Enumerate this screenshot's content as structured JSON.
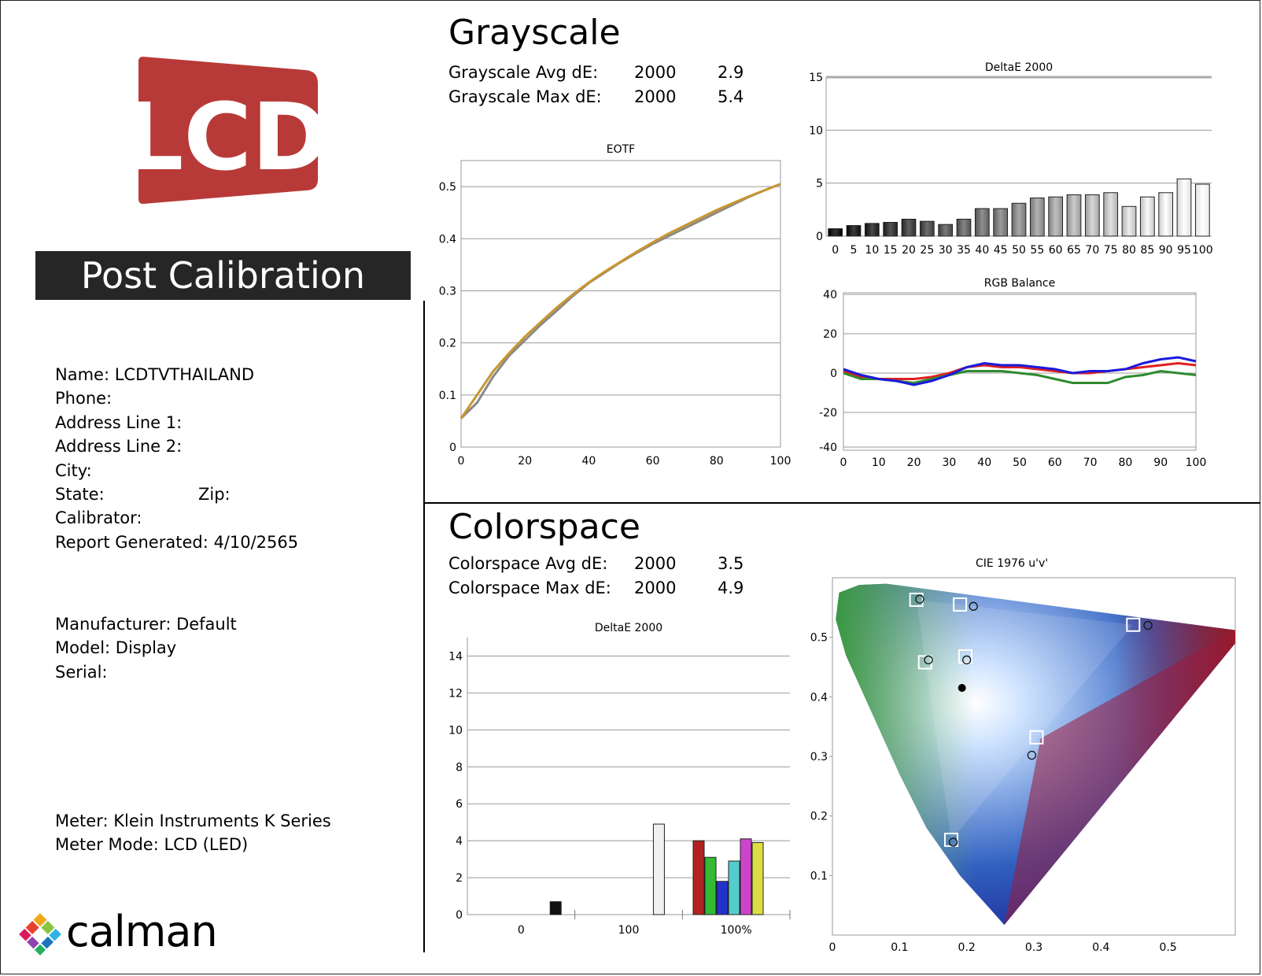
{
  "logo_text": "LCD",
  "banner": "Post Calibration",
  "info": {
    "name": "Name: LCDTVTHAILAND",
    "phone": "Phone:",
    "address1": "Address Line 1:",
    "address2": "Address Line 2:",
    "city": "City:",
    "state": "State:",
    "zip": "Zip:",
    "calibrator": "Calibrator:",
    "report": "Report Generated: 4/10/2565",
    "manufacturer": "Manufacturer: Default",
    "model": "Model: Display",
    "serial": "Serial:",
    "meter": "Meter: Klein Instruments K Series",
    "meter_mode": "Meter Mode: LCD (LED)"
  },
  "brand": "calman",
  "grayscale": {
    "title": "Grayscale",
    "avg_label": "Grayscale Avg dE:",
    "avg_std": "2000",
    "avg_val": "2.9",
    "max_label": "Grayscale Max dE:",
    "max_std": "2000",
    "max_val": "5.4"
  },
  "colorspace": {
    "title": "Colorspace",
    "avg_label": "Colorspace Avg dE:",
    "avg_std": "2000",
    "avg_val": "3.5",
    "max_label": "Colorspace Max dE:",
    "max_std": "2000",
    "max_val": "4.9"
  },
  "chart_data": [
    {
      "type": "line",
      "title": "EOTF",
      "x": [
        0,
        5,
        10,
        15,
        20,
        25,
        30,
        35,
        40,
        45,
        50,
        55,
        60,
        65,
        70,
        75,
        80,
        85,
        90,
        95,
        100
      ],
      "xlim": [
        0,
        100
      ],
      "ylim": [
        0,
        0.55
      ],
      "xticks": [
        "0",
        "20",
        "40",
        "60",
        "80",
        "100"
      ],
      "yticks": [
        "0",
        "0.1",
        "0.2",
        "0.3",
        "0.4",
        "0.5"
      ],
      "series": [
        {
          "color": "#8a8a8a",
          "values": [
            0.055,
            0.085,
            0.135,
            0.175,
            0.205,
            0.235,
            0.262,
            0.29,
            0.315,
            0.335,
            0.355,
            0.373,
            0.39,
            0.405,
            0.42,
            0.435,
            0.45,
            0.465,
            0.48,
            0.493,
            0.505
          ]
        },
        {
          "color": "#c8962f",
          "values": [
            0.055,
            0.1,
            0.145,
            0.18,
            0.212,
            0.24,
            0.268,
            0.293,
            0.316,
            0.337,
            0.356,
            0.375,
            0.393,
            0.41,
            0.425,
            0.44,
            0.455,
            0.468,
            0.481,
            0.493,
            0.505
          ]
        }
      ]
    },
    {
      "type": "bar",
      "title": "DeltaE 2000",
      "categories": [
        "0",
        "5",
        "10",
        "15",
        "20",
        "25",
        "30",
        "35",
        "40",
        "45",
        "50",
        "55",
        "60",
        "65",
        "70",
        "75",
        "80",
        "85",
        "90",
        "95",
        "100"
      ],
      "values": [
        0.7,
        1.0,
        1.2,
        1.3,
        1.6,
        1.4,
        1.1,
        1.6,
        2.6,
        2.6,
        3.1,
        3.6,
        3.7,
        3.9,
        3.9,
        4.1,
        2.8,
        3.7,
        4.1,
        5.4,
        4.9
      ],
      "ylim": [
        0,
        15
      ],
      "yticks": [
        "0",
        "5",
        "10",
        "15"
      ]
    },
    {
      "type": "line",
      "title": "RGB Balance",
      "x": [
        0,
        5,
        10,
        15,
        20,
        25,
        30,
        35,
        40,
        45,
        50,
        55,
        60,
        65,
        70,
        75,
        80,
        85,
        90,
        95,
        100
      ],
      "xlim": [
        0,
        100
      ],
      "ylim": [
        -40,
        40
      ],
      "xticks": [
        "0",
        "10",
        "20",
        "30",
        "40",
        "50",
        "60",
        "70",
        "80",
        "90",
        "100"
      ],
      "yticks": [
        "40",
        "20",
        "0",
        "-20",
        "-40"
      ],
      "series": [
        {
          "color": "#e02020",
          "values": [
            1,
            -2,
            -3,
            -3,
            -3,
            -2,
            0,
            3,
            4,
            3,
            3,
            2,
            1,
            0,
            0,
            1,
            2,
            3,
            4,
            5,
            4
          ]
        },
        {
          "color": "#2e8b2e",
          "values": [
            0,
            -3,
            -3,
            -4,
            -5,
            -3,
            -1,
            1,
            1,
            1,
            0,
            -1,
            -3,
            -5,
            -5,
            -5,
            -2,
            -1,
            1,
            0,
            -1
          ]
        },
        {
          "color": "#1a1adb",
          "values": [
            2,
            -1,
            -3,
            -4,
            -6,
            -4,
            -1,
            3,
            5,
            4,
            4,
            3,
            2,
            0,
            1,
            1,
            2,
            5,
            7,
            8,
            6
          ]
        }
      ]
    },
    {
      "type": "bar",
      "title": "DeltaE 2000",
      "categories": [
        "0",
        "100",
        "100%"
      ],
      "ylim": [
        0,
        15
      ],
      "yticks": [
        "0",
        "2",
        "4",
        "6",
        "8",
        "10",
        "12",
        "14"
      ],
      "bars": [
        {
          "value": 0.7,
          "color": "#111111"
        },
        {
          "value": 4.9,
          "color": "#f0f0f0"
        },
        {
          "value": 4.0,
          "color": "#b32222"
        },
        {
          "value": 3.1,
          "color": "#33bb33"
        },
        {
          "value": 1.8,
          "color": "#2233cc"
        },
        {
          "value": 2.9,
          "color": "#55cccc"
        },
        {
          "value": 4.1,
          "color": "#cc44cc"
        },
        {
          "value": 3.9,
          "color": "#dddd44"
        }
      ]
    },
    {
      "type": "scatter",
      "title": "CIE 1976 u'v'",
      "xlim": [
        0,
        0.6
      ],
      "ylim": [
        0,
        0.6
      ],
      "xticks": [
        "0",
        "0.1",
        "0.2",
        "0.3",
        "0.4",
        "0.5"
      ],
      "yticks": [
        "0.1",
        "0.2",
        "0.3",
        "0.4",
        "0.5"
      ],
      "targets": [
        [
          0.125,
          0.563
        ],
        [
          0.19,
          0.555
        ],
        [
          0.448,
          0.521
        ],
        [
          0.138,
          0.458
        ],
        [
          0.198,
          0.468
        ],
        [
          0.304,
          0.332
        ],
        [
          0.177,
          0.16
        ]
      ],
      "measured": [
        [
          0.13,
          0.564
        ],
        [
          0.21,
          0.552
        ],
        [
          0.47,
          0.52
        ],
        [
          0.143,
          0.462
        ],
        [
          0.2,
          0.462
        ],
        [
          0.297,
          0.302
        ],
        [
          0.18,
          0.156
        ]
      ],
      "white": [
        0.193,
        0.415
      ]
    }
  ]
}
